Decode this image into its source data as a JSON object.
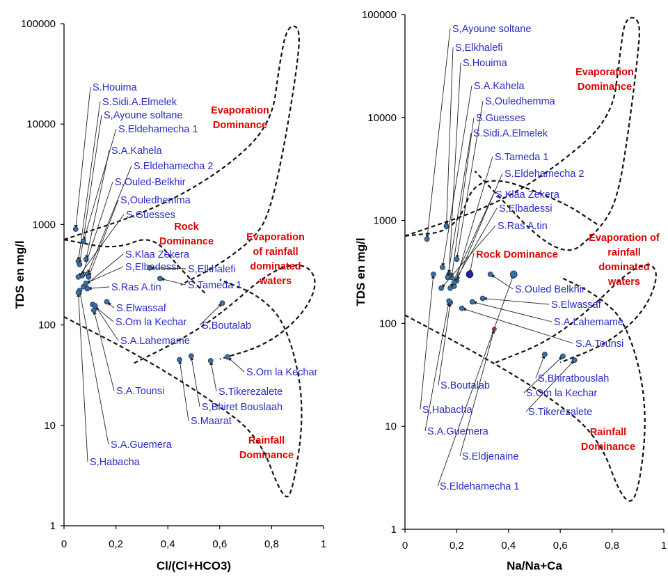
{
  "colors": {
    "axis": "#000000",
    "sample_label": "#2a2ac8",
    "region_label": "#e00000",
    "point": "#3a6ea5",
    "point_edge": "#1f3350",
    "highlight_point_right": "#1e22a0",
    "magenta_point_right": "#c83c8c",
    "envelope": "#111111"
  },
  "chart_data": [
    {
      "type": "scatter",
      "title": "",
      "xlabel": "Cl/(Cl+HCO3)",
      "ylabel": "TDS en mg/l",
      "xlim": [
        0,
        1
      ],
      "ylim": [
        1,
        100000
      ],
      "y_scale": "log",
      "x_ticks": [
        "0",
        "0,2",
        "0,4",
        "0,6",
        "0,8",
        "1"
      ],
      "y_ticks": [
        "1",
        "10",
        "100",
        "1000",
        "10000",
        "100000"
      ],
      "grid": false,
      "points": [
        {
          "label": "S.Houima",
          "x": 0.045,
          "y": 900
        },
        {
          "label": "S.Sidi.A.Elmelek",
          "x": 0.055,
          "y": 430
        },
        {
          "label": "S,Ayoune soltane",
          "x": 0.06,
          "y": 400
        },
        {
          "label": "S.Eldehamecha 1",
          "x": 0.075,
          "y": 680
        },
        {
          "label": "S.A.Kahela",
          "x": 0.085,
          "y": 450
        },
        {
          "label": "S.Eldehamecha 2",
          "x": 0.09,
          "y": 320
        },
        {
          "label": "S.Ouled-Belkhir",
          "x": 0.07,
          "y": 310
        },
        {
          "label": "S,Ouledhemma",
          "x": 0.095,
          "y": 300
        },
        {
          "label": "S.Guesses",
          "x": 0.055,
          "y": 300
        },
        {
          "label": "S.Klaa Zekera",
          "x": 0.075,
          "y": 240
        },
        {
          "label": "S,Elbadessi",
          "x": 0.085,
          "y": 260
        },
        {
          "label": "S,Elkhalefi",
          "x": 0.33,
          "y": 370
        },
        {
          "label": "S.Tameda 1",
          "x": 0.37,
          "y": 290
        },
        {
          "label": "S.Ras A.tin",
          "x": 0.09,
          "y": 230
        },
        {
          "label": "S.Elwassaf",
          "x": 0.165,
          "y": 170
        },
        {
          "label": "S.Om la Kechar",
          "x": 0.11,
          "y": 160
        },
        {
          "label": "S.A.Lahemame",
          "x": 0.12,
          "y": 155
        },
        {
          "label": "S,Boutalab",
          "x": 0.61,
          "y": 165
        },
        {
          "label": "S.Om la Kechar",
          "x": 0.63,
          "y": 48
        },
        {
          "label": "S.Tikerezalete",
          "x": 0.565,
          "y": 44
        },
        {
          "label": "S,Bhiret Bouslaah",
          "x": 0.49,
          "y": 49
        },
        {
          "label": "S.Maarat",
          "x": 0.445,
          "y": 45
        },
        {
          "label": "S.A.Tounsi",
          "x": 0.115,
          "y": 140
        },
        {
          "label": "S.A.Guemera",
          "x": 0.06,
          "y": 220
        },
        {
          "label": "S,Habacha",
          "x": 0.055,
          "y": 210
        }
      ],
      "regions": [
        "Evaporation Dominance",
        "Rock Dominance",
        "Evaporation of rainfall dominated waters",
        "Rainfall Dominance"
      ]
    },
    {
      "type": "scatter",
      "title": "",
      "xlabel": "Na/Na+Ca",
      "ylabel": "TDS en mg/l",
      "xlim": [
        0,
        1
      ],
      "ylim": [
        1,
        100000
      ],
      "y_scale": "log",
      "x_ticks": [
        "0",
        "0,2",
        "0,4",
        "0,6",
        "0,8",
        "1"
      ],
      "y_ticks": [
        "1",
        "10",
        "100",
        "1000",
        "10000",
        "100000"
      ],
      "grid": false,
      "points": [
        {
          "label": "S,Ayoune soltane",
          "x": 0.085,
          "y": 660
        },
        {
          "label": "S,Elkhalefi",
          "x": 0.16,
          "y": 880
        },
        {
          "label": "S.Houima",
          "x": 0.17,
          "y": 300
        },
        {
          "label": "S.A.Kahela",
          "x": 0.145,
          "y": 350
        },
        {
          "label": "S,Ouledhemma",
          "x": 0.2,
          "y": 420
        },
        {
          "label": "S.Guesses",
          "x": 0.18,
          "y": 280
        },
        {
          "label": "S.Sidi.A.Elmelek",
          "x": 0.165,
          "y": 280
        },
        {
          "label": "S.Tameda 1",
          "x": 0.19,
          "y": 230
        },
        {
          "label": "S.Eldehamecha 2",
          "x": 0.2,
          "y": 260
        },
        {
          "label": "S.Klaa Zekera",
          "x": 0.175,
          "y": 220
        },
        {
          "label": "S,Elbadessi",
          "x": 0.19,
          "y": 250
        },
        {
          "label": "S.Ras A.tin",
          "x": 0.14,
          "y": 220
        },
        {
          "label": "Rock Dominance",
          "x": 0.25,
          "y": 300,
          "highlight": true
        },
        {
          "label": "S.Ouled Belkhir",
          "x": 0.33,
          "y": 300
        },
        {
          "label": "S.Elwassaf",
          "x": 0.3,
          "y": 175
        },
        {
          "label": "S.A.Lahemame",
          "x": 0.26,
          "y": 162
        },
        {
          "label": "S.A.Tounsi",
          "x": 0.22,
          "y": 140
        },
        {
          "label": "S,Bhiratbouslah",
          "x": 0.54,
          "y": 50
        },
        {
          "label": "S.Om la Kechar",
          "x": 0.61,
          "y": 48
        },
        {
          "label": "S.Tikerezalete",
          "x": 0.655,
          "y": 44
        },
        {
          "label": "S.Boutalab",
          "x": 0.175,
          "y": 160
        },
        {
          "label": "S,Habacha",
          "x": 0.11,
          "y": 300
        },
        {
          "label": "S.A.Guemera",
          "x": 0.17,
          "y": 165
        },
        {
          "label": "S.Eldjenaine",
          "x": 0.345,
          "y": 88,
          "magenta": true
        },
        {
          "label": "S.Eldehamecha 1",
          "x": 0.42,
          "y": 300
        }
      ],
      "regions": [
        "Evaporation Dominance",
        "Rock Dominance",
        "Evaporation of rainfall dominated waters",
        "Rainfall Dominance"
      ]
    }
  ]
}
